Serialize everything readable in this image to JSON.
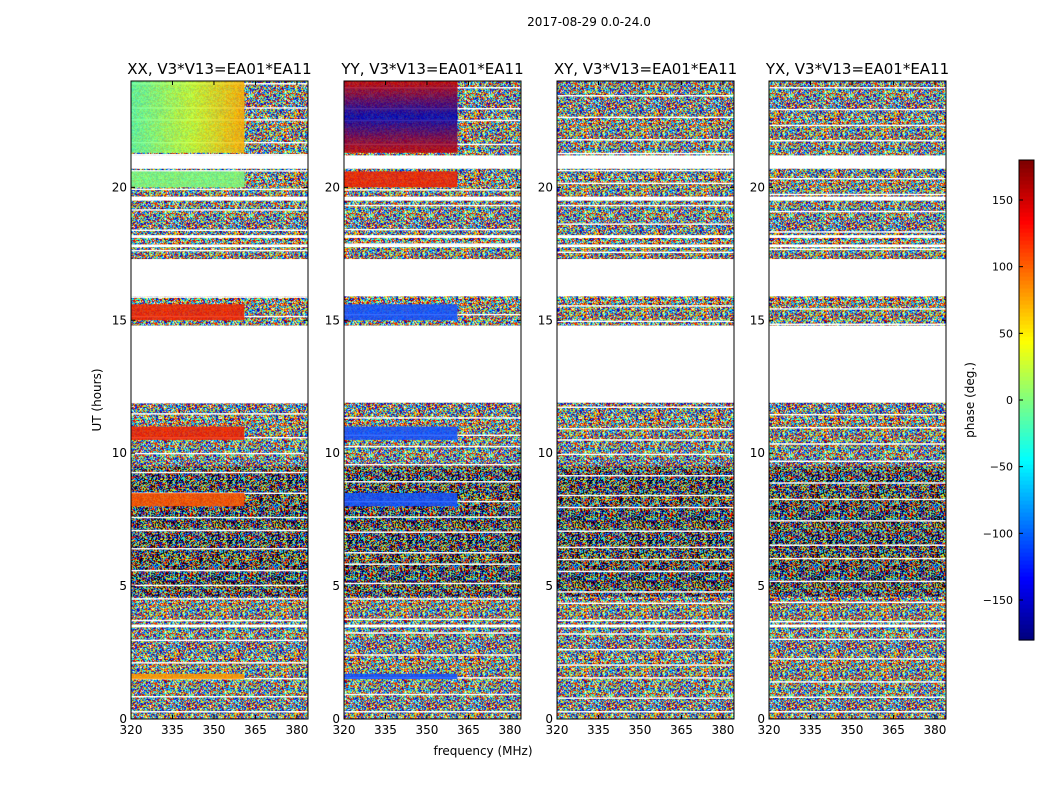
{
  "chart_data": {
    "type": "heatmap",
    "suptitle": "2017-08-29 0.0-24.0",
    "panels": [
      {
        "title": "XX, V3*V13=EA01*EA11",
        "pol": "XX"
      },
      {
        "title": "YY, V3*V13=EA01*EA11",
        "pol": "YY"
      },
      {
        "title": "XY, V3*V13=EA01*EA11",
        "pol": "XY"
      },
      {
        "title": "YX, V3*V13=EA01*EA11",
        "pol": "YX"
      }
    ],
    "xlabel": "frequency (MHz)",
    "ylabel": "UT (hours)",
    "xlim": [
      320,
      384
    ],
    "ylim": [
      0,
      24
    ],
    "xticks": [
      320,
      335,
      350,
      365,
      380
    ],
    "yticks": [
      0,
      5,
      10,
      15,
      20
    ],
    "colorbar": {
      "label": "phase (deg.)",
      "range": [
        -180,
        180
      ],
      "ticks": [
        150,
        100,
        50,
        0,
        -50,
        -100,
        -150
      ],
      "tick_labels": [
        "150",
        "100",
        "50",
        "0",
        "−50",
        "−100",
        "−150"
      ],
      "colormap": "jet"
    },
    "flagged_hours": [
      [
        15.9,
        17.3
      ],
      [
        11.9,
        14.8
      ],
      [
        3.45,
        3.55
      ],
      [
        19.5,
        19.65
      ],
      [
        20.7,
        21.2
      ],
      [
        17.75,
        17.85
      ],
      [
        18.1,
        18.2
      ]
    ],
    "coherent_band_mhz": [
      320,
      361
    ],
    "coherent_hours": {
      "XX": [
        [
          21.3,
          24.0,
          "green-yellow"
        ],
        [
          20.0,
          20.6,
          "green"
        ],
        [
          15.0,
          15.6,
          "red"
        ],
        [
          10.5,
          11.0,
          "red"
        ],
        [
          8.0,
          8.5,
          "orange-red"
        ],
        [
          1.5,
          1.7,
          "orange"
        ]
      ],
      "YY": [
        [
          21.3,
          24.0,
          "red-blue"
        ],
        [
          20.0,
          20.6,
          "red"
        ],
        [
          15.0,
          15.6,
          "blue"
        ],
        [
          10.5,
          11.0,
          "blue"
        ],
        [
          8.0,
          8.5,
          "blue"
        ],
        [
          1.5,
          1.7,
          "blue"
        ]
      ]
    }
  }
}
